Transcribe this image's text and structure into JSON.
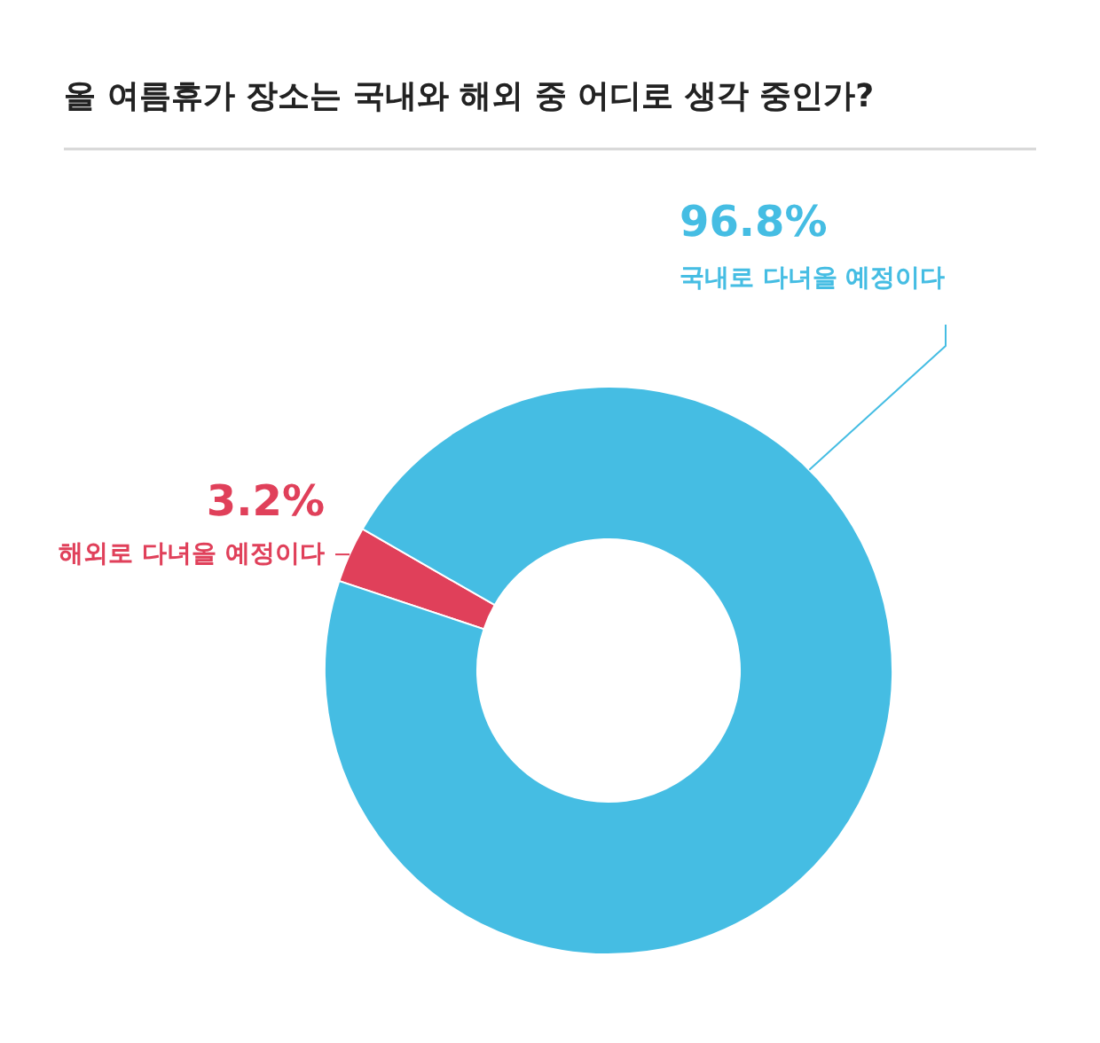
{
  "chart_data": {
    "type": "donut",
    "title": "올 여름휴가 장소는 국내와 해외 중 어디로 생각 중인가?",
    "categories": [
      "해외로 다녀올 예정이다",
      "국내로 다녀올 예정이다"
    ],
    "values": [
      3.2,
      96.8
    ],
    "colors": [
      "#e0405a",
      "#45bde3"
    ],
    "value_labels": [
      "3.2%",
      "96.8%"
    ]
  }
}
